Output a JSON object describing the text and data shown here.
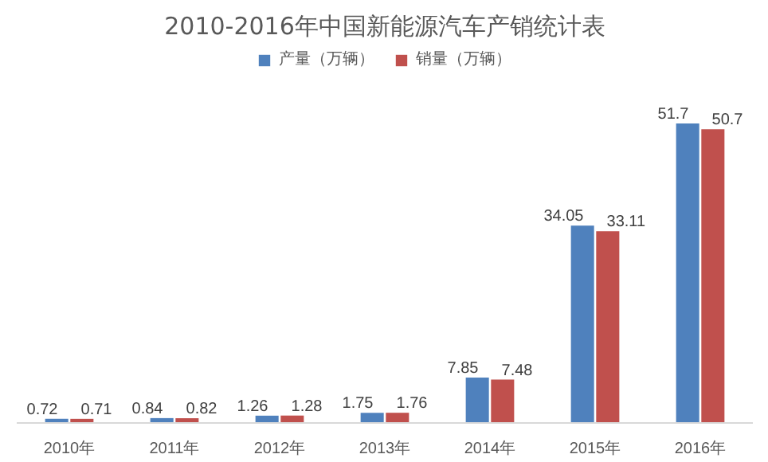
{
  "chart_data": {
    "type": "bar",
    "title": "2010-2016年中国新能源汽车产销统计表",
    "categories": [
      "2010年",
      "2011年",
      "2012年",
      "2013年",
      "2014年",
      "2015年",
      "2016年"
    ],
    "series": [
      {
        "name": "产量（万辆）",
        "color": "#4f81bd",
        "values": [
          0.72,
          0.84,
          1.26,
          1.75,
          7.85,
          34.05,
          51.7
        ]
      },
      {
        "name": "销量（万辆）",
        "color": "#c0504d",
        "values": [
          0.71,
          0.82,
          1.28,
          1.76,
          7.48,
          33.11,
          50.7
        ]
      }
    ],
    "data_labels": true,
    "legend": "top",
    "grid": false
  }
}
